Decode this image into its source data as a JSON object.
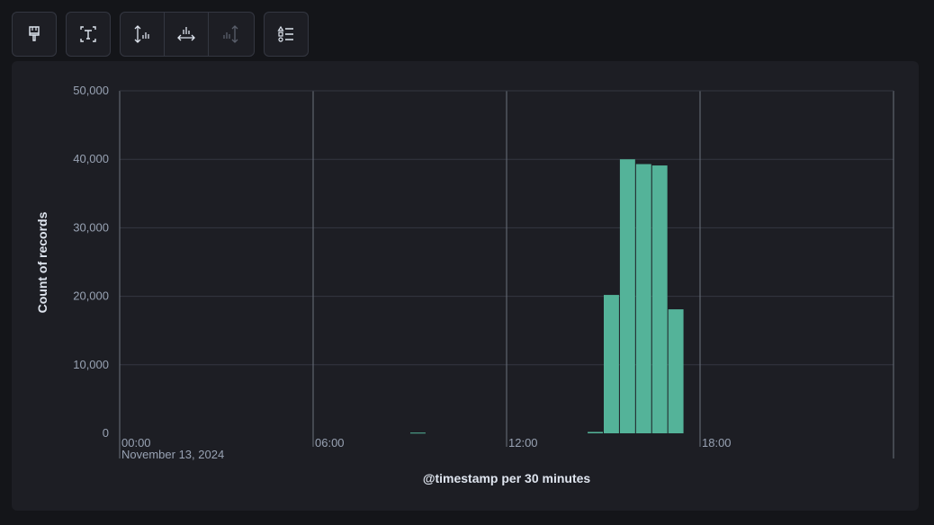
{
  "toolbar": {
    "buttons": [
      {
        "icon": "brush-icon",
        "name": "brush-button",
        "enabled": true
      },
      {
        "icon": "text-format-icon",
        "name": "text-format-button",
        "enabled": true
      },
      {
        "icon": "vertical-axis-icon",
        "name": "left-axis-button",
        "enabled": true
      },
      {
        "icon": "horizontal-axis-icon",
        "name": "bottom-axis-button",
        "enabled": true
      },
      {
        "icon": "right-axis-icon",
        "name": "right-axis-button",
        "enabled": false
      },
      {
        "icon": "legend-icon",
        "name": "legend-button",
        "enabled": true
      }
    ]
  },
  "colors": {
    "background": "#141519",
    "panel": "#1d1e24",
    "bar": "#54b399",
    "grid": "#343741",
    "axis": "#6a717d"
  },
  "chart_data": {
    "type": "bar",
    "title": "",
    "xlabel": "@timestamp per 30 minutes",
    "ylabel": "Count of records",
    "ylim": [
      0,
      50000
    ],
    "yticks": [
      "0",
      "10,000",
      "20,000",
      "30,000",
      "40,000",
      "50,000"
    ],
    "ytick_values": [
      0,
      10000,
      20000,
      30000,
      40000,
      50000
    ],
    "xlim_hours": [
      0,
      24
    ],
    "xticks": [
      {
        "hour": 0,
        "label": "00:00",
        "sublabel": "November 13, 2024"
      },
      {
        "hour": 6,
        "label": "06:00",
        "sublabel": ""
      },
      {
        "hour": 12,
        "label": "12:00",
        "sublabel": ""
      },
      {
        "hour": 18,
        "label": "18:00",
        "sublabel": ""
      }
    ],
    "bin_minutes": 30,
    "series": [
      {
        "x": [
          "09:00",
          "14:30",
          "15:00",
          "15:30",
          "16:00",
          "16:30",
          "17:00"
        ],
        "values": [
          100,
          200,
          20200,
          40000,
          39300,
          39100,
          18100
        ]
      }
    ]
  }
}
